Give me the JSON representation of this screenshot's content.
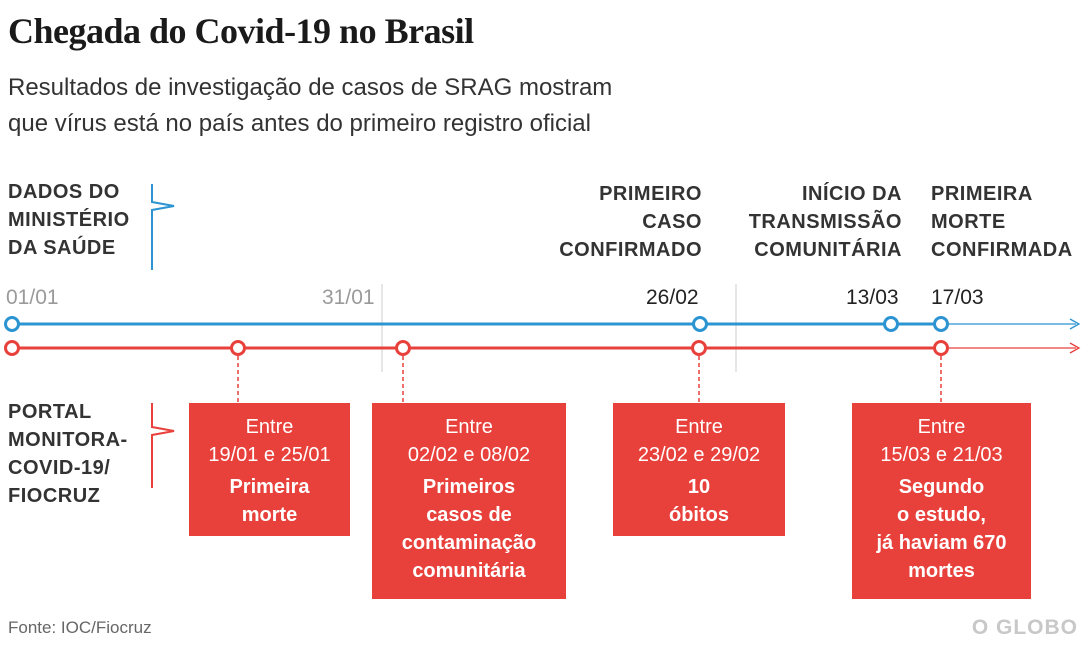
{
  "title": "Chegada do Covid-19 no Brasil",
  "subtitle": {
    "line1": "Resultados de investigação de casos de SRAG mostram",
    "line2": "que vírus está no país antes do primeiro registro oficial"
  },
  "ministerio": {
    "label_lines": [
      "DADOS DO",
      "MINISTÉRIO",
      "DA SAÚDE"
    ],
    "color": "#2b94d1",
    "events": [
      {
        "label_lines": [
          "PRIMEIRO",
          "CASO",
          "CONFIRMADO"
        ],
        "date": "26/02"
      },
      {
        "label_lines": [
          "INÍCIO DA",
          "TRANSMISSÃO",
          "COMUNITÁRIA"
        ],
        "date": "13/03"
      },
      {
        "label_lines": [
          "PRIMEIRA",
          "MORTE",
          "CONFIRMADA"
        ],
        "date": "17/03"
      }
    ]
  },
  "axis_dates": [
    "01/01",
    "31/01"
  ],
  "fiocruz": {
    "label_lines": [
      "PORTAL",
      "MONITORA-",
      "COVID-19/",
      "FIOCRUZ"
    ],
    "color": "#e8413c",
    "events": [
      {
        "entre": "Entre",
        "period": "19/01 e 25/01",
        "desc_lines": [
          "Primeira",
          "morte"
        ]
      },
      {
        "entre": "Entre",
        "period": "02/02 e 08/02",
        "desc_lines": [
          "Primeiros",
          "casos de",
          "contaminação",
          "comunitária"
        ]
      },
      {
        "entre": "Entre",
        "period": "23/02 e 29/02",
        "desc_lines": [
          "10",
          "óbitos"
        ]
      },
      {
        "entre": "Entre",
        "period": "15/03 e 21/03",
        "desc_lines": [
          "Segundo",
          "o estudo,",
          "já haviam 670",
          "mortes"
        ]
      }
    ]
  },
  "source": "Fonte: IOC/Fiocruz",
  "logo": "O GLOBO"
}
